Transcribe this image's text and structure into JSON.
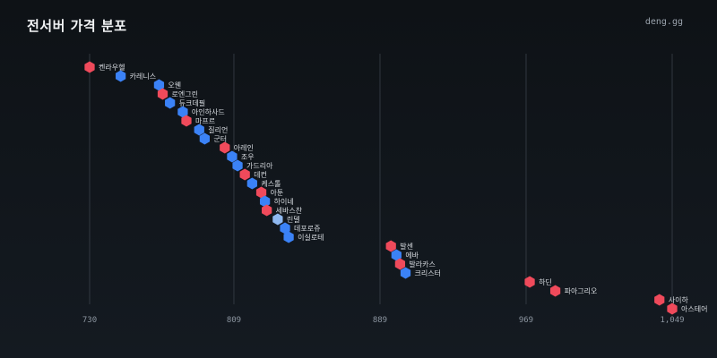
{
  "header": {
    "title": "전서버 가격 분포",
    "brand": "deng.gg"
  },
  "colors": {
    "background": "#10151a",
    "grid": "#3a414a",
    "blue": "#3b82f6",
    "red": "#ef4a5b",
    "light_blue": "#8fb8f0",
    "label": "#d9dde2",
    "tick": "#8c95a0"
  },
  "chart_data": {
    "type": "scatter",
    "title": "전서버 가격 분포",
    "x_ticks": [
      730,
      809,
      889,
      969,
      1049
    ],
    "x_tick_labels": [
      "730",
      "809",
      "889",
      "969",
      "1,049"
    ],
    "xlim": [
      730,
      1049
    ],
    "grid": true,
    "points": [
      {
        "name": "켄라우헬",
        "value": 730,
        "color": "red"
      },
      {
        "name": "카레니스",
        "value": 747,
        "color": "blue"
      },
      {
        "name": "오웬",
        "value": 768,
        "color": "blue"
      },
      {
        "name": "로엔그린",
        "value": 770,
        "color": "red"
      },
      {
        "name": "듀크데필",
        "value": 774,
        "color": "blue"
      },
      {
        "name": "아인하사드",
        "value": 781,
        "color": "blue"
      },
      {
        "name": "마프르",
        "value": 783,
        "color": "red"
      },
      {
        "name": "질리언",
        "value": 790,
        "color": "blue"
      },
      {
        "name": "군터",
        "value": 793,
        "color": "blue"
      },
      {
        "name": "아레인",
        "value": 804,
        "color": "red"
      },
      {
        "name": "조우",
        "value": 808,
        "color": "blue"
      },
      {
        "name": "가드리아",
        "value": 811,
        "color": "blue"
      },
      {
        "name": "데컨",
        "value": 815,
        "color": "red"
      },
      {
        "name": "케스톨",
        "value": 819,
        "color": "blue"
      },
      {
        "name": "아툰",
        "value": 824,
        "color": "red"
      },
      {
        "name": "하이네",
        "value": 826,
        "color": "blue"
      },
      {
        "name": "세바스찬",
        "value": 827,
        "color": "red"
      },
      {
        "name": "린델",
        "value": 833,
        "color": "light_blue"
      },
      {
        "name": "데포로쥬",
        "value": 837,
        "color": "blue"
      },
      {
        "name": "이실로테",
        "value": 839,
        "color": "blue"
      },
      {
        "name": "발센",
        "value": 895,
        "color": "red"
      },
      {
        "name": "에바",
        "value": 898,
        "color": "blue"
      },
      {
        "name": "발라카스",
        "value": 900,
        "color": "red"
      },
      {
        "name": "크리스터",
        "value": 903,
        "color": "blue"
      },
      {
        "name": "하딘",
        "value": 971,
        "color": "red"
      },
      {
        "name": "파아그리오",
        "value": 985,
        "color": "red"
      },
      {
        "name": "사이하",
        "value": 1042,
        "color": "red"
      },
      {
        "name": "아스테어",
        "value": 1049,
        "color": "red"
      }
    ]
  }
}
